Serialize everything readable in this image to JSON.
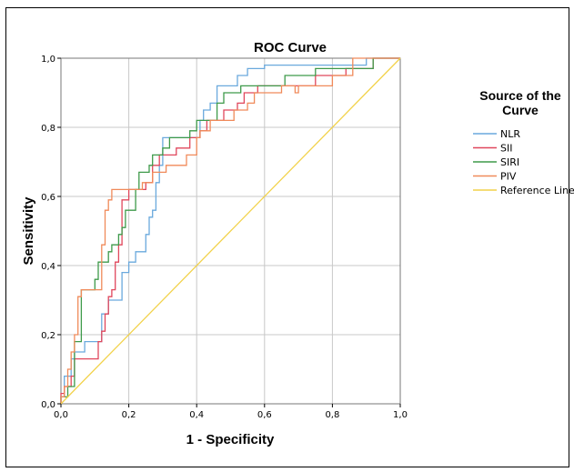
{
  "chart_data": {
    "type": "line",
    "title": "ROC Curve",
    "xlabel": "1 - Specificity",
    "ylabel": "Sensitivity",
    "xlim": [
      0,
      1
    ],
    "ylim": [
      0,
      1
    ],
    "grid": true,
    "x_ticks": [
      "0,0",
      "0,2",
      "0,4",
      "0,6",
      "0,8",
      "1,0"
    ],
    "y_ticks": [
      "0,0",
      "0,2",
      "0,4",
      "0,6",
      "0,8",
      "1,0"
    ],
    "legend_title": "Source of the Curve",
    "legend_position": "right",
    "series": [
      {
        "name": "NLR",
        "color": "#6aa9dd",
        "points": [
          [
            0,
            0
          ],
          [
            0,
            0.02
          ],
          [
            0.01,
            0.02
          ],
          [
            0.01,
            0.08
          ],
          [
            0.03,
            0.08
          ],
          [
            0.03,
            0.13
          ],
          [
            0.04,
            0.13
          ],
          [
            0.04,
            0.15
          ],
          [
            0.07,
            0.15
          ],
          [
            0.07,
            0.18
          ],
          [
            0.12,
            0.18
          ],
          [
            0.12,
            0.26
          ],
          [
            0.14,
            0.26
          ],
          [
            0.14,
            0.3
          ],
          [
            0.18,
            0.3
          ],
          [
            0.18,
            0.38
          ],
          [
            0.2,
            0.38
          ],
          [
            0.2,
            0.41
          ],
          [
            0.22,
            0.41
          ],
          [
            0.22,
            0.44
          ],
          [
            0.25,
            0.44
          ],
          [
            0.25,
            0.49
          ],
          [
            0.26,
            0.49
          ],
          [
            0.26,
            0.54
          ],
          [
            0.27,
            0.54
          ],
          [
            0.27,
            0.56
          ],
          [
            0.28,
            0.56
          ],
          [
            0.28,
            0.64
          ],
          [
            0.29,
            0.64
          ],
          [
            0.29,
            0.69
          ],
          [
            0.3,
            0.69
          ],
          [
            0.3,
            0.77
          ],
          [
            0.41,
            0.77
          ],
          [
            0.41,
            0.82
          ],
          [
            0.42,
            0.82
          ],
          [
            0.42,
            0.85
          ],
          [
            0.44,
            0.85
          ],
          [
            0.44,
            0.87
          ],
          [
            0.46,
            0.87
          ],
          [
            0.46,
            0.92
          ],
          [
            0.52,
            0.92
          ],
          [
            0.52,
            0.95
          ],
          [
            0.55,
            0.95
          ],
          [
            0.55,
            0.97
          ],
          [
            0.6,
            0.97
          ],
          [
            0.6,
            0.98
          ],
          [
            0.9,
            0.98
          ],
          [
            0.9,
            1
          ],
          [
            1,
            1
          ]
        ]
      },
      {
        "name": "SII",
        "color": "#e0475c",
        "points": [
          [
            0,
            0
          ],
          [
            0,
            0.03
          ],
          [
            0.01,
            0.03
          ],
          [
            0.01,
            0.05
          ],
          [
            0.03,
            0.05
          ],
          [
            0.03,
            0.08
          ],
          [
            0.04,
            0.08
          ],
          [
            0.04,
            0.13
          ],
          [
            0.11,
            0.13
          ],
          [
            0.11,
            0.18
          ],
          [
            0.12,
            0.18
          ],
          [
            0.12,
            0.21
          ],
          [
            0.13,
            0.21
          ],
          [
            0.13,
            0.26
          ],
          [
            0.14,
            0.26
          ],
          [
            0.14,
            0.31
          ],
          [
            0.15,
            0.31
          ],
          [
            0.15,
            0.33
          ],
          [
            0.16,
            0.33
          ],
          [
            0.16,
            0.41
          ],
          [
            0.17,
            0.41
          ],
          [
            0.17,
            0.46
          ],
          [
            0.18,
            0.46
          ],
          [
            0.18,
            0.59
          ],
          [
            0.2,
            0.59
          ],
          [
            0.2,
            0.62
          ],
          [
            0.25,
            0.62
          ],
          [
            0.25,
            0.64
          ],
          [
            0.27,
            0.64
          ],
          [
            0.27,
            0.69
          ],
          [
            0.29,
            0.69
          ],
          [
            0.29,
            0.72
          ],
          [
            0.34,
            0.72
          ],
          [
            0.34,
            0.74
          ],
          [
            0.38,
            0.74
          ],
          [
            0.38,
            0.77
          ],
          [
            0.41,
            0.77
          ],
          [
            0.41,
            0.79
          ],
          [
            0.43,
            0.79
          ],
          [
            0.43,
            0.82
          ],
          [
            0.48,
            0.82
          ],
          [
            0.48,
            0.85
          ],
          [
            0.52,
            0.85
          ],
          [
            0.52,
            0.87
          ],
          [
            0.54,
            0.87
          ],
          [
            0.54,
            0.9
          ],
          [
            0.58,
            0.9
          ],
          [
            0.58,
            0.92
          ],
          [
            0.75,
            0.92
          ],
          [
            0.75,
            0.95
          ],
          [
            0.84,
            0.95
          ],
          [
            0.84,
            0.97
          ],
          [
            0.92,
            0.97
          ],
          [
            0.92,
            1
          ],
          [
            1,
            1
          ]
        ]
      },
      {
        "name": "SIRI",
        "color": "#3e9a4a",
        "points": [
          [
            0,
            0
          ],
          [
            0,
            0.02
          ],
          [
            0.02,
            0.02
          ],
          [
            0.02,
            0.05
          ],
          [
            0.04,
            0.05
          ],
          [
            0.04,
            0.18
          ],
          [
            0.06,
            0.18
          ],
          [
            0.06,
            0.33
          ],
          [
            0.1,
            0.33
          ],
          [
            0.1,
            0.36
          ],
          [
            0.11,
            0.36
          ],
          [
            0.11,
            0.41
          ],
          [
            0.14,
            0.41
          ],
          [
            0.14,
            0.44
          ],
          [
            0.15,
            0.44
          ],
          [
            0.15,
            0.46
          ],
          [
            0.17,
            0.46
          ],
          [
            0.17,
            0.49
          ],
          [
            0.18,
            0.49
          ],
          [
            0.18,
            0.51
          ],
          [
            0.19,
            0.51
          ],
          [
            0.19,
            0.56
          ],
          [
            0.22,
            0.56
          ],
          [
            0.22,
            0.62
          ],
          [
            0.23,
            0.62
          ],
          [
            0.23,
            0.67
          ],
          [
            0.26,
            0.67
          ],
          [
            0.26,
            0.69
          ],
          [
            0.27,
            0.69
          ],
          [
            0.27,
            0.72
          ],
          [
            0.3,
            0.72
          ],
          [
            0.3,
            0.74
          ],
          [
            0.32,
            0.74
          ],
          [
            0.32,
            0.77
          ],
          [
            0.38,
            0.77
          ],
          [
            0.38,
            0.79
          ],
          [
            0.4,
            0.79
          ],
          [
            0.4,
            0.82
          ],
          [
            0.46,
            0.82
          ],
          [
            0.46,
            0.87
          ],
          [
            0.48,
            0.87
          ],
          [
            0.48,
            0.9
          ],
          [
            0.53,
            0.9
          ],
          [
            0.53,
            0.92
          ],
          [
            0.66,
            0.92
          ],
          [
            0.66,
            0.95
          ],
          [
            0.75,
            0.95
          ],
          [
            0.75,
            0.97
          ],
          [
            0.92,
            0.97
          ],
          [
            0.92,
            1
          ],
          [
            1,
            1
          ]
        ]
      },
      {
        "name": "PIV",
        "color": "#f08a5a",
        "points": [
          [
            0,
            0
          ],
          [
            0,
            0.02
          ],
          [
            0.01,
            0.02
          ],
          [
            0.01,
            0.05
          ],
          [
            0.02,
            0.05
          ],
          [
            0.02,
            0.1
          ],
          [
            0.03,
            0.1
          ],
          [
            0.03,
            0.15
          ],
          [
            0.04,
            0.15
          ],
          [
            0.04,
            0.2
          ],
          [
            0.05,
            0.2
          ],
          [
            0.05,
            0.31
          ],
          [
            0.06,
            0.31
          ],
          [
            0.06,
            0.33
          ],
          [
            0.12,
            0.33
          ],
          [
            0.12,
            0.46
          ],
          [
            0.13,
            0.46
          ],
          [
            0.13,
            0.56
          ],
          [
            0.14,
            0.56
          ],
          [
            0.14,
            0.59
          ],
          [
            0.15,
            0.59
          ],
          [
            0.15,
            0.62
          ],
          [
            0.24,
            0.62
          ],
          [
            0.24,
            0.64
          ],
          [
            0.27,
            0.64
          ],
          [
            0.27,
            0.67
          ],
          [
            0.31,
            0.67
          ],
          [
            0.31,
            0.69
          ],
          [
            0.37,
            0.69
          ],
          [
            0.37,
            0.72
          ],
          [
            0.4,
            0.72
          ],
          [
            0.4,
            0.77
          ],
          [
            0.41,
            0.77
          ],
          [
            0.41,
            0.79
          ],
          [
            0.44,
            0.79
          ],
          [
            0.44,
            0.82
          ],
          [
            0.51,
            0.82
          ],
          [
            0.51,
            0.85
          ],
          [
            0.55,
            0.85
          ],
          [
            0.55,
            0.87
          ],
          [
            0.57,
            0.87
          ],
          [
            0.57,
            0.9
          ],
          [
            0.65,
            0.9
          ],
          [
            0.65,
            0.92
          ],
          [
            0.69,
            0.92
          ],
          [
            0.69,
            0.9
          ],
          [
            0.7,
            0.9
          ],
          [
            0.7,
            0.92
          ],
          [
            0.8,
            0.92
          ],
          [
            0.8,
            0.95
          ],
          [
            0.86,
            0.95
          ],
          [
            0.86,
            1
          ],
          [
            1,
            1
          ]
        ]
      },
      {
        "name": "Reference Line",
        "color": "#f2d24a",
        "points": [
          [
            0,
            0
          ],
          [
            1,
            1
          ]
        ]
      }
    ]
  }
}
